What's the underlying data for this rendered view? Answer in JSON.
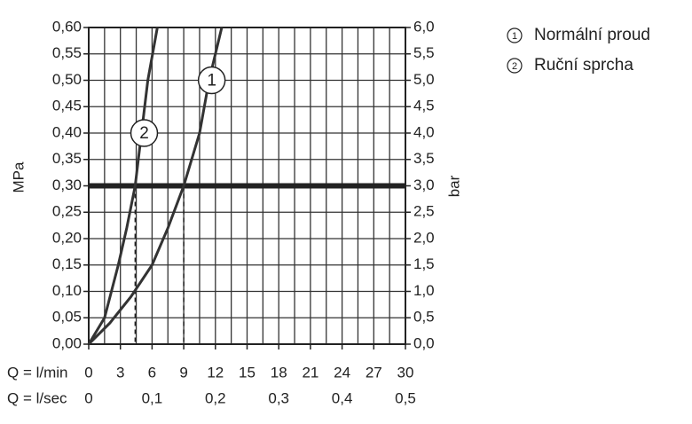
{
  "chart_data": {
    "type": "line",
    "ylabel": "MPa",
    "y2label": "bar",
    "xlabel": "Q = l/min",
    "x2label": "Q = l/sec",
    "xlim": [
      0,
      30
    ],
    "xticks": [
      0,
      3,
      6,
      9,
      12,
      15,
      18,
      21,
      24,
      27,
      30
    ],
    "x2lim": [
      0,
      0.5
    ],
    "x2ticks": [
      0,
      {
        "value": 0.1,
        "label": "0,1"
      },
      {
        "value": 0.2,
        "label": "0,2"
      },
      {
        "value": 0.3,
        "label": "0,3"
      },
      {
        "value": 0.4,
        "label": "0,4"
      },
      {
        "value": 0.5,
        "label": "0,5"
      }
    ],
    "ylim": [
      0,
      0.6
    ],
    "yticks": [
      {
        "value": 0,
        "label": "0,00"
      },
      {
        "value": 0.05,
        "label": "0,05"
      },
      {
        "value": 0.1,
        "label": "0,10"
      },
      {
        "value": 0.15,
        "label": "0,15"
      },
      {
        "value": 0.2,
        "label": "0,20"
      },
      {
        "value": 0.25,
        "label": "0,25"
      },
      {
        "value": 0.3,
        "label": "0,30"
      },
      {
        "value": 0.35,
        "label": "0,35"
      },
      {
        "value": 0.4,
        "label": "0,40"
      },
      {
        "value": 0.45,
        "label": "0,45"
      },
      {
        "value": 0.5,
        "label": "0,50"
      },
      {
        "value": 0.55,
        "label": "0,55"
      },
      {
        "value": 0.6,
        "label": "0,60"
      }
    ],
    "y2lim": [
      0,
      6
    ],
    "y2ticks": [
      {
        "value": 0,
        "label": "0,0"
      },
      {
        "value": 0.5,
        "label": "0,5"
      },
      {
        "value": 1,
        "label": "1,0"
      },
      {
        "value": 1.5,
        "label": "1,5"
      },
      {
        "value": 2,
        "label": "2,0"
      },
      {
        "value": 2.5,
        "label": "2,5"
      },
      {
        "value": 3,
        "label": "3,0"
      },
      {
        "value": 3.5,
        "label": "3,5"
      },
      {
        "value": 4,
        "label": "4,0"
      },
      {
        "value": 4.5,
        "label": "4,5"
      },
      {
        "value": 5,
        "label": "5,0"
      },
      {
        "value": 5.5,
        "label": "5,5"
      },
      {
        "value": 6,
        "label": "6,0"
      }
    ],
    "grid": true,
    "grid_step_x": 1.5,
    "grid_step_y": 0.05,
    "reference_line": 0.3,
    "drop_lines": [
      4.4,
      9
    ],
    "series": [
      {
        "name": "Normální proud",
        "label": "1",
        "color": "#333333",
        "x": [
          0,
          2,
          4,
          6,
          7.5,
          9,
          10.5,
          11.4,
          12.6
        ],
        "values": [
          0,
          0.04,
          0.09,
          0.15,
          0.22,
          0.3,
          0.4,
          0.5,
          0.6
        ]
      },
      {
        "name": "Ruční sprcha",
        "label": "2",
        "color": "#333333",
        "x": [
          0,
          1.5,
          2.8,
          3.6,
          4.4,
          5,
          5.6,
          6.5
        ],
        "values": [
          0,
          0.05,
          0.15,
          0.22,
          0.3,
          0.4,
          0.5,
          0.6
        ]
      }
    ]
  }
}
